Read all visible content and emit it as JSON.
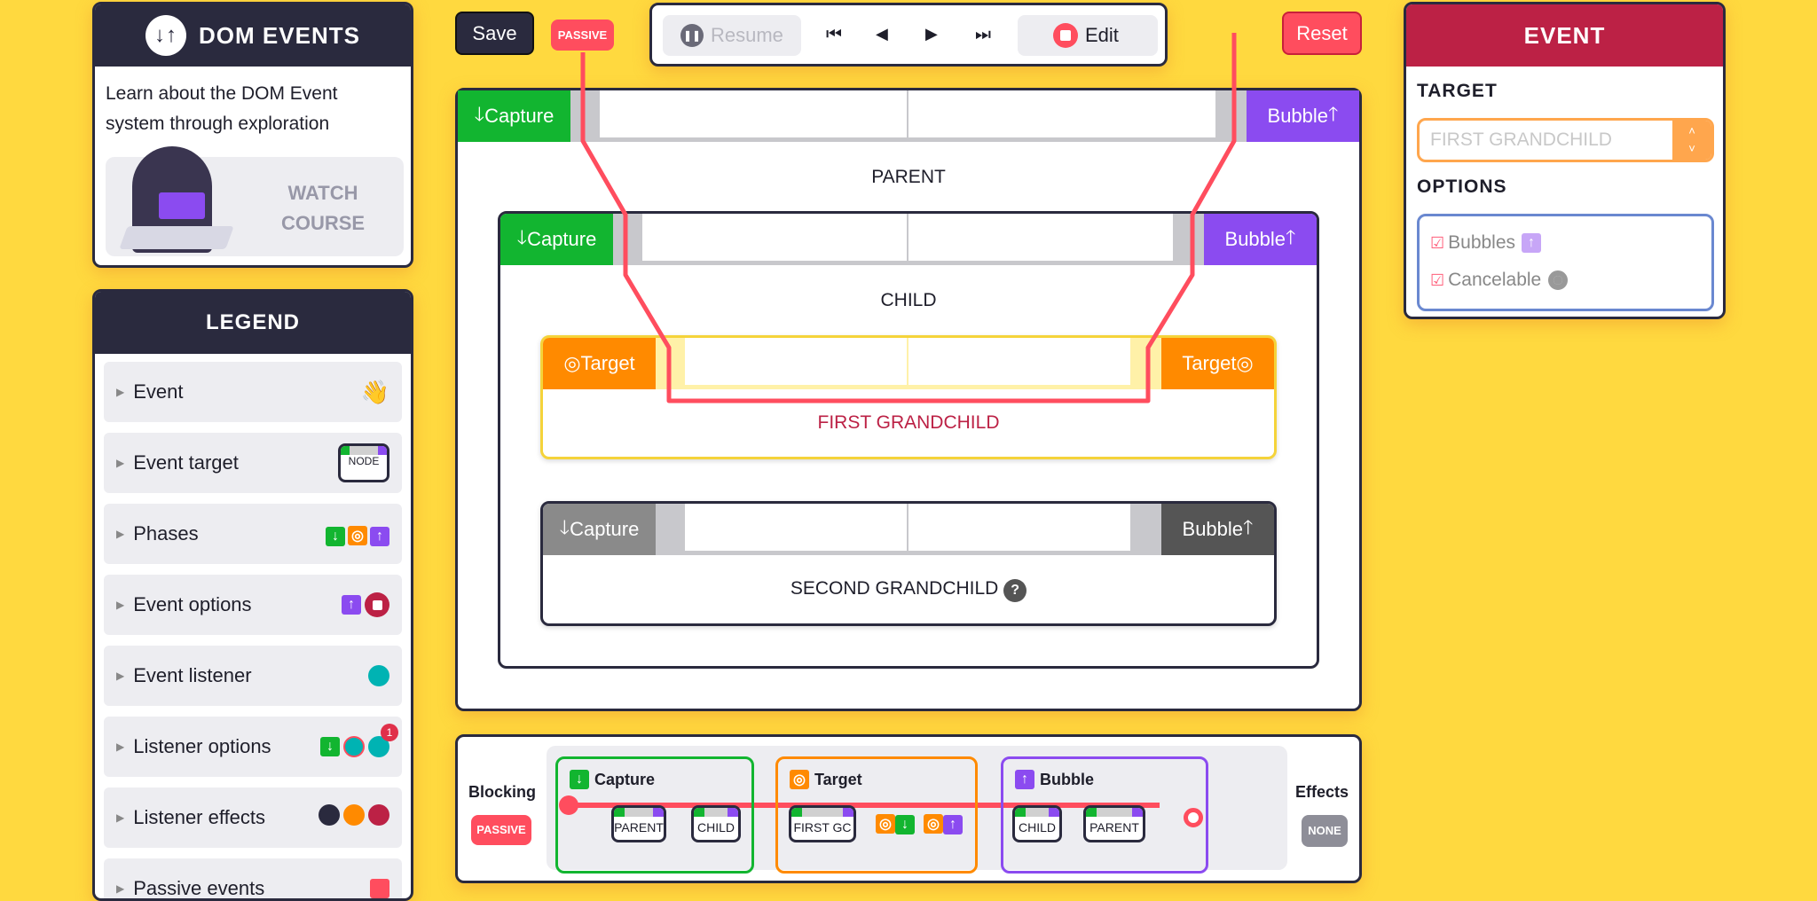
{
  "app": {
    "title": "DOM EVENTS",
    "description": "Learn about the DOM Event system through exploration",
    "watch_course": "WATCH COURSE",
    "logo_icon": "down-up-arrows-icon"
  },
  "legend": {
    "title": "LEGEND",
    "items": [
      {
        "label": "Event",
        "icon": "waving-hand-icon"
      },
      {
        "label": "Event target",
        "icon": "node-icon",
        "icon_text": "NODE"
      },
      {
        "label": "Phases",
        "icon": "phases-icons"
      },
      {
        "label": "Event options",
        "icon": "options-icons"
      },
      {
        "label": "Event listener",
        "icon": "listener-dot-icon"
      },
      {
        "label": "Listener options",
        "icon": "listener-options-icons",
        "badge": "1"
      },
      {
        "label": "Listener effects",
        "icon": "effects-icons"
      },
      {
        "label": "Passive events",
        "icon": "passive-icon"
      }
    ]
  },
  "toolbar": {
    "save": "Save",
    "passive": "PASSIVE",
    "resume": "Resume",
    "edit": "Edit",
    "reset": "Reset"
  },
  "tree": {
    "capture": "Capture",
    "bubble": "Bubble",
    "target": "Target",
    "parent": "PARENT",
    "child": "CHILD",
    "first_grandchild": "FIRST GRANDCHILD",
    "second_grandchild": "SECOND GRANDCHILD",
    "help": "?"
  },
  "timeline": {
    "blocking_label": "Blocking",
    "blocking_value": "PASSIVE",
    "effects_label": "Effects",
    "effects_value": "NONE",
    "phases": {
      "capture": "Capture",
      "target": "Target",
      "bubble": "Bubble"
    },
    "capture_nodes": [
      "PARENT",
      "CHILD"
    ],
    "target_nodes": [
      "FIRST GC"
    ],
    "bubble_nodes": [
      "CHILD",
      "PARENT"
    ]
  },
  "event": {
    "title": "EVENT",
    "target_label": "TARGET",
    "target_value": "FIRST GRANDCHILD",
    "options_label": "OPTIONS",
    "options": [
      {
        "label": "Bubbles",
        "checked": true
      },
      {
        "label": "Cancelable",
        "checked": true
      }
    ]
  },
  "colors": {
    "background": "#ffd93f",
    "dark": "#2a2a3e",
    "capture": "#12b530",
    "bubble": "#8b4bf0",
    "target": "#ff8a00",
    "accent": "#ff4d5e",
    "event": "#bc2145",
    "listener": "#00b3b3"
  }
}
